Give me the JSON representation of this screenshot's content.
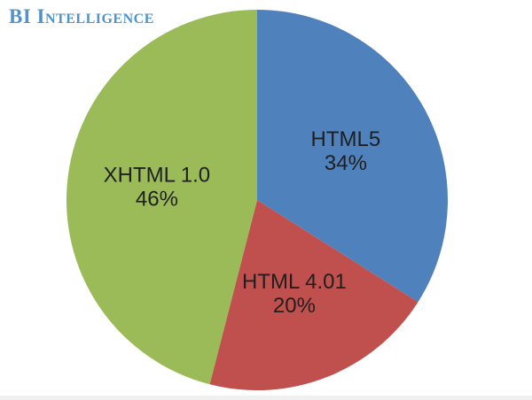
{
  "logo": {
    "text": "BI Intelligence",
    "color": "#4E93C9"
  },
  "chart_data": {
    "type": "pie",
    "title": "",
    "categories": [
      "HTML5",
      "HTML 4.01",
      "XHTML 1.0"
    ],
    "values": [
      34,
      20,
      46
    ],
    "displayed_labels": [
      "HTML5 34%",
      "HTML 4.01 20%",
      "XHTML 1.0 46%"
    ],
    "colors": [
      "#4F81BD",
      "#C0504D",
      "#9BBB59"
    ],
    "start_angle_deg": 0,
    "direction": "clockwise",
    "legend": "none",
    "label_color": "#1F1F1F",
    "background": "#FFFFFF"
  }
}
